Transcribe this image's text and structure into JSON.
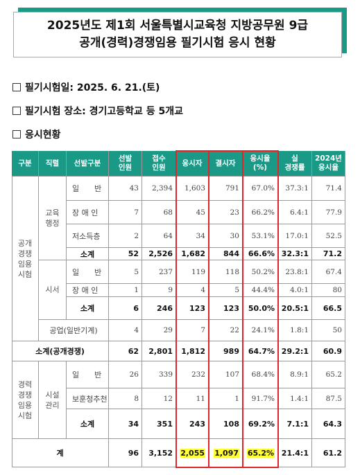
{
  "title": {
    "line1": "2025년도 제1회 서울특별시교육청 지방공무원 9급",
    "line2": "공개(경력)경쟁임용 필기시험 응시 현황"
  },
  "bullets": {
    "exam_date": "필기시험일: 2025. 6. 21.(토)",
    "exam_place": "필기시험 장소: 경기고등학교 등 5개교",
    "status": "응시현황"
  },
  "table": {
    "headers": {
      "group": "구분",
      "job": "직렬",
      "type": "선발구분",
      "selected": "선발\n인원",
      "applied": "접수\n인원",
      "attended": "응시자",
      "absent": "결시자",
      "rate": "응시율\n(%)",
      "competition": "실\n경쟁률",
      "rate2024": "2024년\n응시율"
    },
    "group_open": "공개\n경쟁\n임용\n시험",
    "group_career": "경력\n경쟁\n임용\n시험",
    "job_admin": "교육\n행정",
    "job_clerk": "시서",
    "job_facility": "시설\n관리",
    "rows": {
      "admin_general": {
        "label": "일　　반",
        "selected": "43",
        "applied": "2,394",
        "attended": "1,603",
        "absent": "791",
        "rate": "67.0%",
        "competition": "37.3:1",
        "rate2024": "71.4"
      },
      "admin_disabled": {
        "label": "장 애 인",
        "selected": "7",
        "applied": "68",
        "attended": "45",
        "absent": "23",
        "rate": "66.2%",
        "competition": "6.4:1",
        "rate2024": "77.9"
      },
      "admin_lowincome": {
        "label": "저소득층",
        "selected": "2",
        "applied": "64",
        "attended": "34",
        "absent": "30",
        "rate": "53.1%",
        "competition": "17.0:1",
        "rate2024": "52.5"
      },
      "admin_sub": {
        "label": "소계",
        "selected": "52",
        "applied": "2,526",
        "attended": "1,682",
        "absent": "844",
        "rate": "66.6%",
        "competition": "32.3:1",
        "rate2024": "71.2"
      },
      "clerk_general": {
        "label": "일　　반",
        "selected": "5",
        "applied": "237",
        "attended": "119",
        "absent": "118",
        "rate": "50.2%",
        "competition": "23.8:1",
        "rate2024": "67.4"
      },
      "clerk_disabled": {
        "label": "장 애 인",
        "selected": "1",
        "applied": "9",
        "attended": "4",
        "absent": "5",
        "rate": "44.4%",
        "competition": "4.0:1",
        "rate2024": "80"
      },
      "clerk_sub": {
        "label": "소계",
        "selected": "6",
        "applied": "246",
        "attended": "123",
        "absent": "123",
        "rate": "50.0%",
        "competition": "20.5:1",
        "rate2024": "66.5"
      },
      "industry": {
        "label": "공업(일반기계)",
        "selected": "4",
        "applied": "29",
        "attended": "7",
        "absent": "22",
        "rate": "24.1%",
        "competition": "1.8:1",
        "rate2024": "50"
      },
      "open_sub": {
        "label": "소계(공개경쟁)",
        "selected": "62",
        "applied": "2,801",
        "attended": "1,812",
        "absent": "989",
        "rate": "64.7%",
        "competition": "29.2:1",
        "rate2024": "60.9"
      },
      "facility_general": {
        "label": "일　　반",
        "selected": "26",
        "applied": "339",
        "attended": "232",
        "absent": "107",
        "rate": "68.4%",
        "competition": "8.9:1",
        "rate2024": "65.2"
      },
      "facility_veteran": {
        "label": "보훈청추천",
        "selected": "8",
        "applied": "12",
        "attended": "11",
        "absent": "1",
        "rate": "91.7%",
        "competition": "1.4:1",
        "rate2024": "87.5"
      },
      "facility_sub": {
        "label": "소계",
        "selected": "34",
        "applied": "351",
        "attended": "243",
        "absent": "108",
        "rate": "69.2%",
        "competition": "7.1:1",
        "rate2024": "64.3"
      },
      "total": {
        "label": "계",
        "selected": "96",
        "applied": "3,152",
        "attended": "2,055",
        "absent": "1,097",
        "rate": "65.2%",
        "competition": "21.4:1",
        "rate2024": "61.2"
      }
    }
  }
}
